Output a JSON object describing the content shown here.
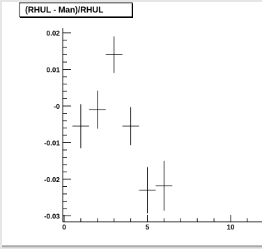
{
  "chart_data": {
    "type": "scatter",
    "title": "(RHUL - Man)/RHUL",
    "xlabel": "",
    "ylabel": "",
    "xlim": [
      -0.3,
      12.9
    ],
    "ylim": [
      -0.0315,
      0.0225
    ],
    "x_ticks": [
      0,
      5,
      10
    ],
    "x_tick_labels": [
      "0",
      "5",
      "10"
    ],
    "y_ticks": [
      0.02,
      0.01,
      0.0,
      -0.01,
      -0.02,
      -0.03
    ],
    "y_tick_labels": [
      "0.02",
      "0.01",
      "-0",
      "-0.01",
      "-0.02",
      "-0.03"
    ],
    "grid": false,
    "points": [
      {
        "x": 1,
        "y": -0.0055,
        "xerr": 0.5,
        "yerr": 0.006
      },
      {
        "x": 2,
        "y": -0.001,
        "xerr": 0.5,
        "yerr": 0.0052
      },
      {
        "x": 3,
        "y": 0.014,
        "xerr": 0.5,
        "yerr": 0.005
      },
      {
        "x": 4,
        "y": -0.0055,
        "xerr": 0.5,
        "yerr": 0.0052
      },
      {
        "x": 5,
        "y": -0.023,
        "xerr": 0.5,
        "yerr": 0.0063
      },
      {
        "x": 6,
        "y": -0.0218,
        "xerr": 0.5,
        "yerr": 0.0068
      }
    ]
  }
}
